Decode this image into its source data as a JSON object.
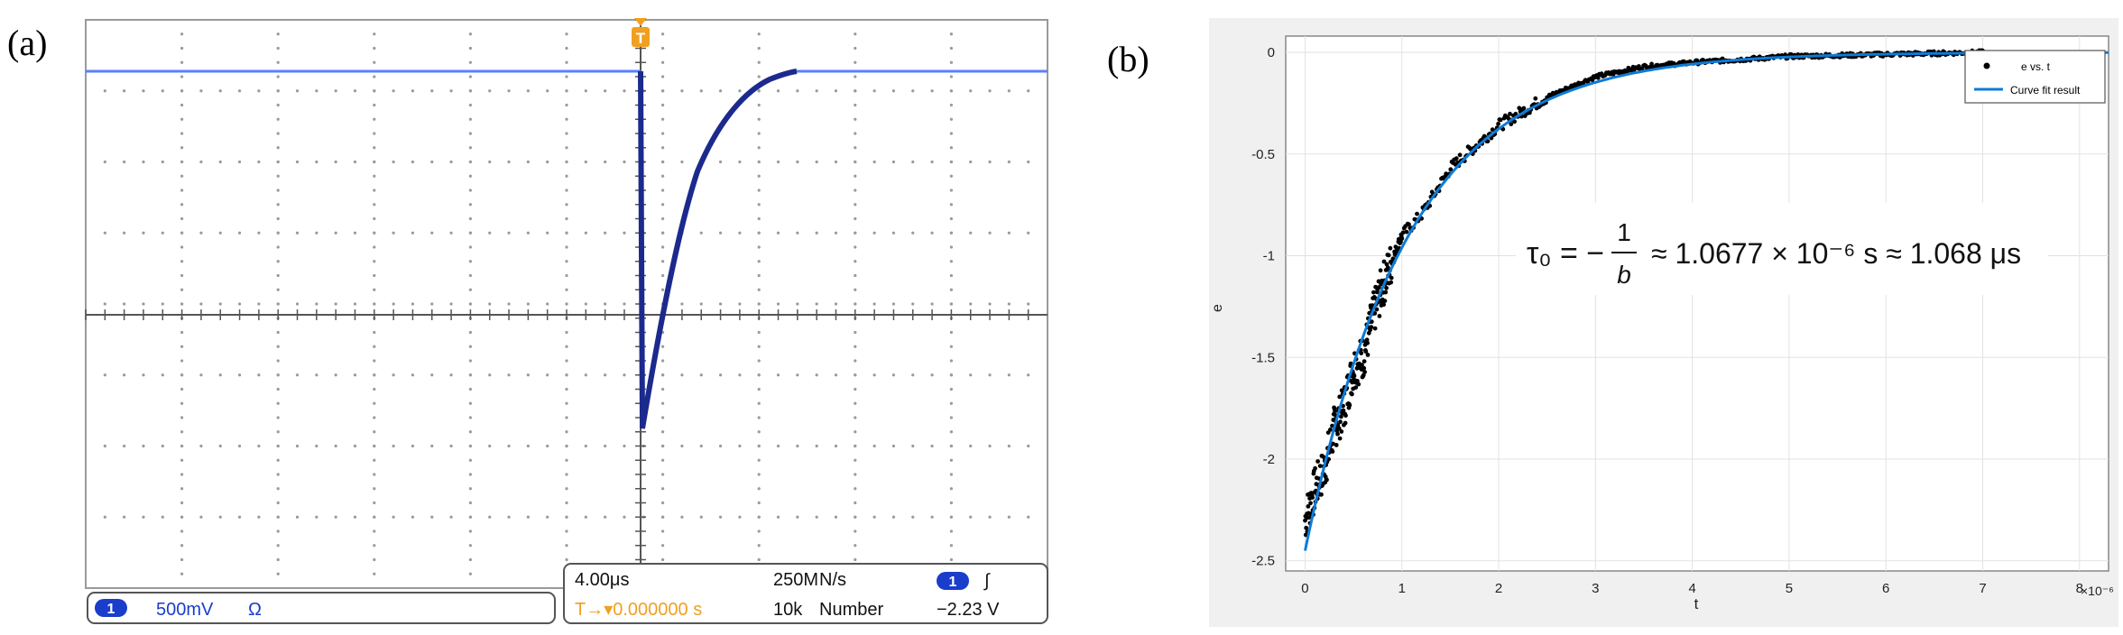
{
  "panels": {
    "a": "(a)",
    "b": "(b)"
  },
  "scope": {
    "trigger_marker": "T",
    "channel_num": "1",
    "volts_per_div": "500mV",
    "coupling_symbol": "Ω",
    "timebase": "4.00μs",
    "sample_rate": "250M",
    "sample_rate_unit": "N/s",
    "trigger_channel": "1",
    "trigger_slope": "∫",
    "trigger_pos": "T→▾0.000000 s",
    "record_length": "10k",
    "record_unit": "Number",
    "trigger_level": "−2.23 V",
    "colors": {
      "trace": "#1b2a8c",
      "baseline": "#5b7fff",
      "trigger": "#f0a020",
      "badge": "#1a3dcc"
    }
  },
  "chart_data": {
    "type": "scatter",
    "xlabel": "t",
    "ylabel": "e",
    "x_exponent": "×10⁻⁶",
    "xlim": [
      -0.2,
      8.3
    ],
    "ylim": [
      -2.55,
      0.08
    ],
    "x_ticks": [
      0,
      1,
      2,
      3,
      4,
      5,
      6,
      7,
      8
    ],
    "y_ticks": [
      0,
      -0.5,
      -1,
      -1.5,
      -2,
      -2.5
    ],
    "grid": true,
    "legend_position": "top-right",
    "legend": [
      "e vs. t",
      "Curve fit result"
    ],
    "equation": "τ₀ = −1/b ≈ 1.0677 × 10⁻⁶ s ≈ 1.068 μs",
    "equation_lhs": "τ₀ = −",
    "equation_frac_num": "1",
    "equation_frac_den": "b",
    "equation_rhs": "≈ 1.0677 × 10⁻⁶ s ≈ 1.068 μs",
    "fit": {
      "a": -2.45,
      "tau": 1.0677
    },
    "series": [
      {
        "name": "e vs. t",
        "x": [
          0.0,
          0.1,
          0.2,
          0.3,
          0.4,
          0.5,
          0.6,
          0.7,
          0.8,
          1.0,
          1.2,
          1.5,
          2.0,
          2.5,
          3.0,
          3.5,
          4.0,
          5.0,
          6.0,
          7.0
        ],
        "y": [
          -2.3,
          -2.15,
          -2.05,
          -1.85,
          -1.75,
          -1.55,
          -1.5,
          -1.3,
          -1.15,
          -0.9,
          -0.8,
          -0.57,
          -0.36,
          -0.22,
          -0.12,
          -0.07,
          -0.05,
          -0.02,
          -0.01,
          0.0
        ]
      },
      {
        "name": "Curve fit result",
        "x": [
          0,
          0.5,
          1,
          1.5,
          2,
          2.5,
          3,
          3.5,
          4,
          5,
          6,
          7,
          8
        ],
        "y": [
          -2.45,
          -1.54,
          -0.96,
          -0.6,
          -0.38,
          -0.23,
          -0.15,
          -0.09,
          -0.06,
          -0.02,
          -0.01,
          0.0,
          0.0
        ]
      }
    ],
    "colors": {
      "data": "#000000",
      "fit": "#0e7bd6"
    }
  }
}
